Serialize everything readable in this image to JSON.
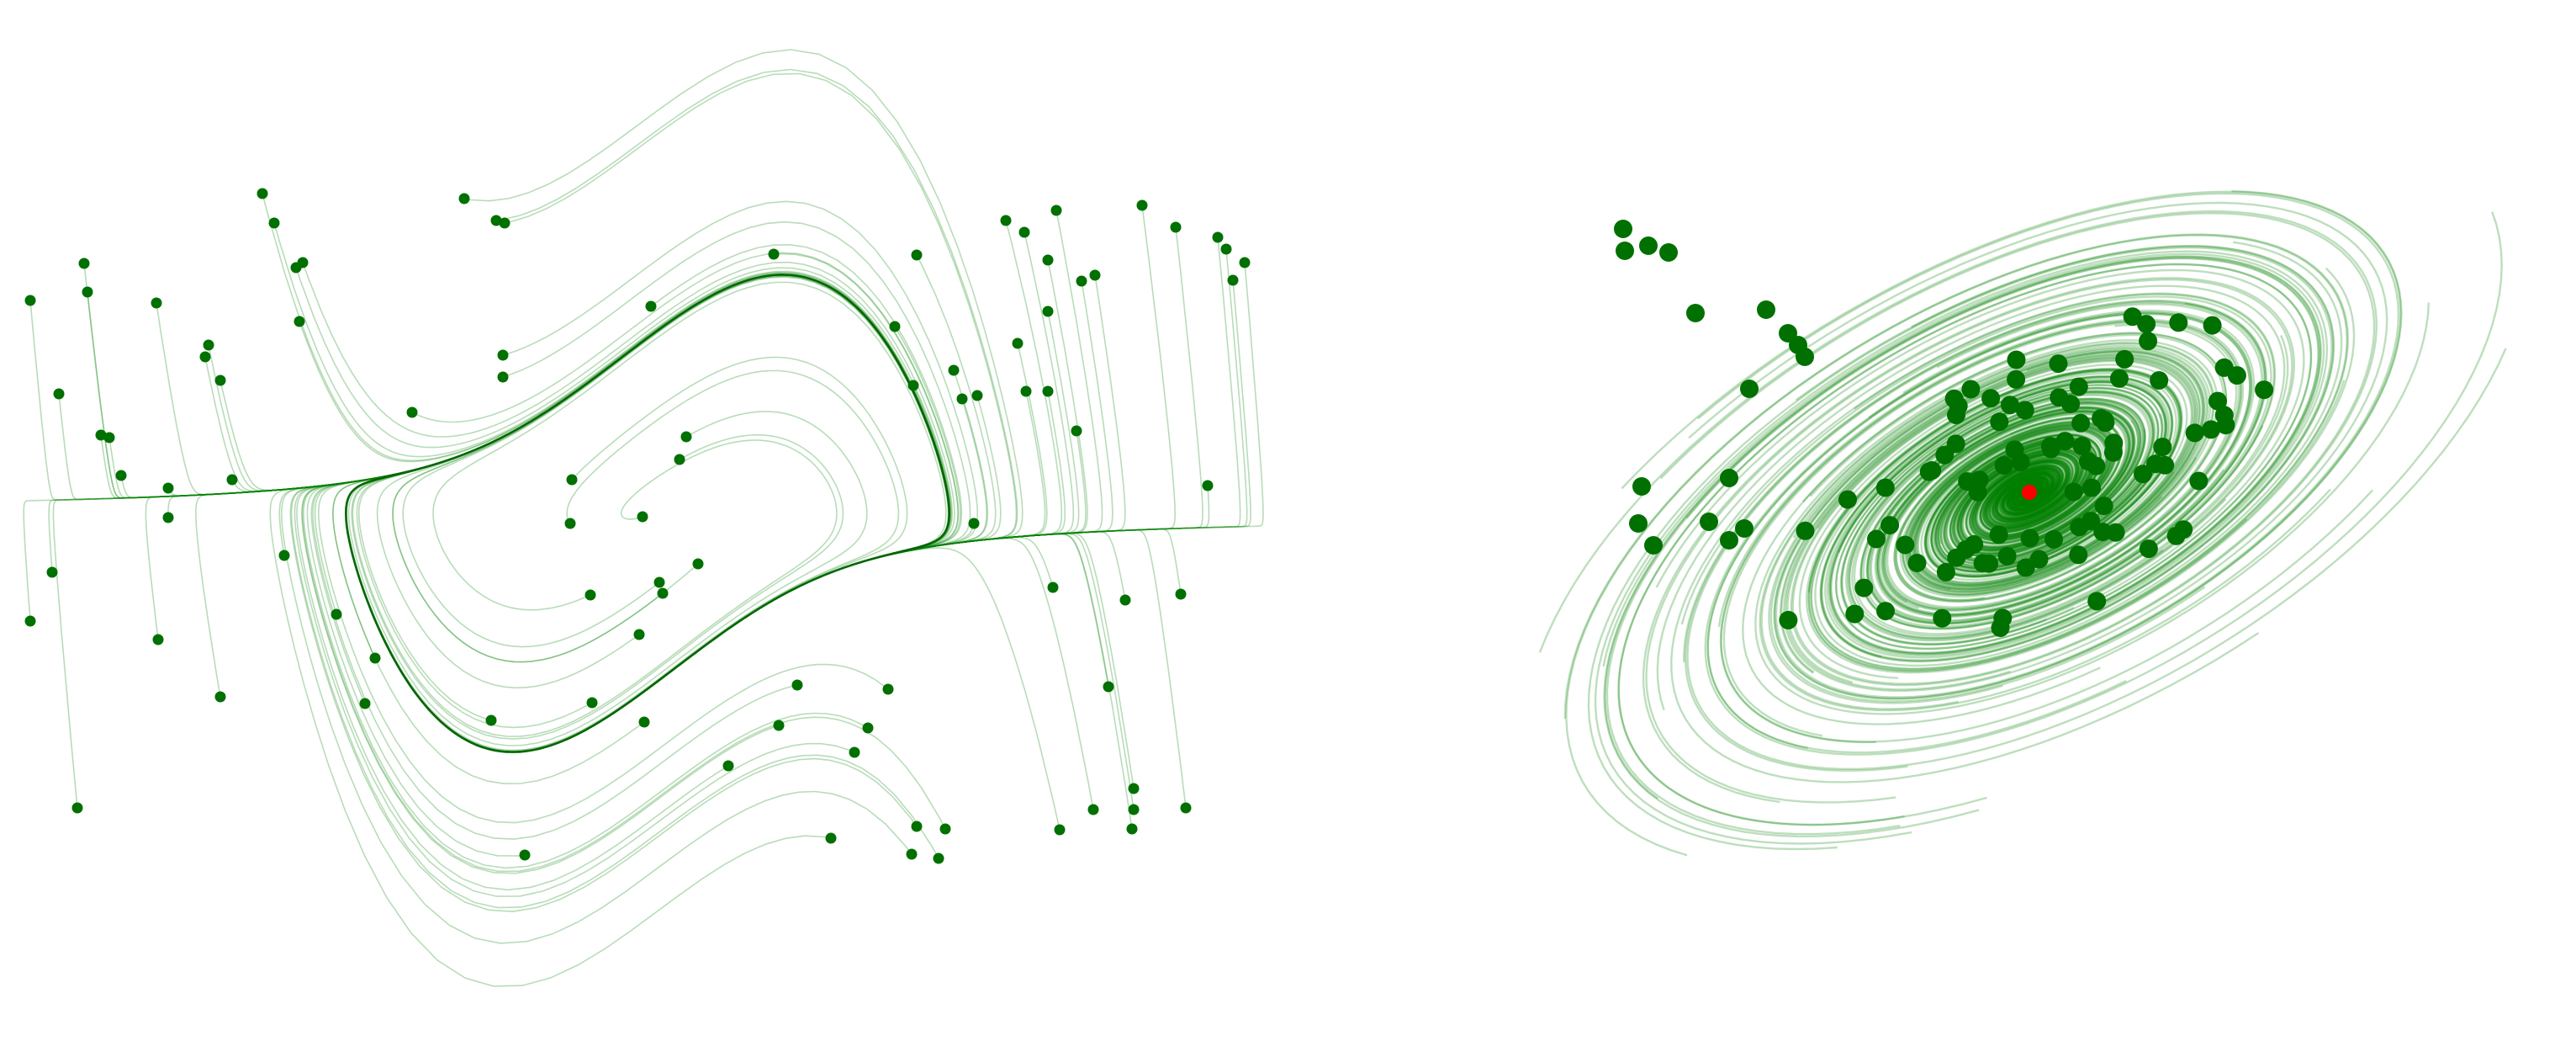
{
  "diagram": {
    "panels": [
      {
        "id": "van-der-pol-phase-portrait",
        "kind": "phase-portrait-limit-cycle",
        "trajectory_color": "#008000",
        "attractor_color": "#006400",
        "start_point_color": "#007000",
        "labels": []
      },
      {
        "id": "stable-focus-phase-portrait",
        "kind": "phase-portrait-spiral-sink",
        "trajectory_color": "#008000",
        "start_point_color": "#007000",
        "equilibrium_color": "#ff0000",
        "labels": []
      }
    ]
  }
}
